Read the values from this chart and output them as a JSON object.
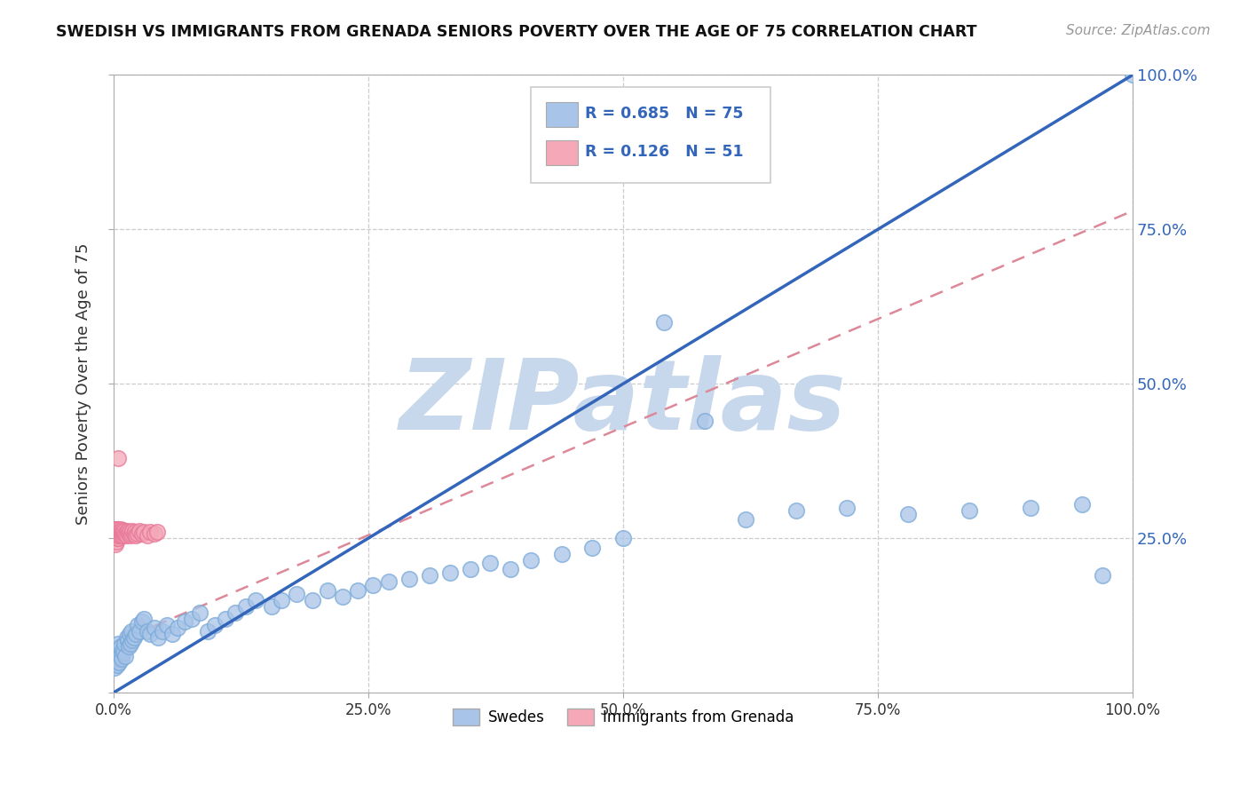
{
  "title": "SWEDISH VS IMMIGRANTS FROM GRENADA SENIORS POVERTY OVER THE AGE OF 75 CORRELATION CHART",
  "source": "Source: ZipAtlas.com",
  "ylabel": "Seniors Poverty Over the Age of 75",
  "xlim": [
    0,
    1.0
  ],
  "ylim": [
    0,
    1.0
  ],
  "xtick_vals": [
    0.0,
    0.25,
    0.5,
    0.75,
    1.0
  ],
  "ytick_vals": [
    0.0,
    0.25,
    0.5,
    0.75,
    1.0
  ],
  "ytick_labels_right": [
    "",
    "25.0%",
    "50.0%",
    "75.0%",
    "100.0%"
  ],
  "swedes_r": 0.685,
  "swedes_n": 75,
  "grenada_r": 0.126,
  "grenada_n": 51,
  "swedes_color": "#A8C4E8",
  "swedes_edge_color": "#7AAAD8",
  "grenada_color": "#F4A8B8",
  "grenada_edge_color": "#E87898",
  "swedes_line_color": "#3366BB",
  "grenada_line_color": "#DD8899",
  "watermark": "ZIPatlas",
  "watermark_color": "#C8D8EC",
  "legend_swedes": "Swedes",
  "legend_grenada": "Immigrants from Grenada",
  "swedes_line_x0": 0.0,
  "swedes_line_y0": 0.0,
  "swedes_line_x1": 1.0,
  "swedes_line_y1": 1.0,
  "grenada_line_x0": 0.0,
  "grenada_line_y0": 0.08,
  "grenada_line_x1": 1.0,
  "grenada_line_y1": 0.78,
  "swedes_x": [
    0.001,
    0.002,
    0.003,
    0.003,
    0.004,
    0.005,
    0.005,
    0.006,
    0.007,
    0.007,
    0.008,
    0.009,
    0.01,
    0.011,
    0.012,
    0.013,
    0.014,
    0.015,
    0.016,
    0.017,
    0.018,
    0.019,
    0.02,
    0.022,
    0.024,
    0.026,
    0.028,
    0.03,
    0.033,
    0.036,
    0.04,
    0.044,
    0.048,
    0.053,
    0.058,
    0.063,
    0.07,
    0.077,
    0.085,
    0.093,
    0.1,
    0.11,
    0.12,
    0.13,
    0.14,
    0.155,
    0.165,
    0.18,
    0.195,
    0.21,
    0.225,
    0.24,
    0.255,
    0.27,
    0.29,
    0.31,
    0.33,
    0.35,
    0.37,
    0.39,
    0.41,
    0.44,
    0.47,
    0.5,
    0.54,
    0.58,
    0.62,
    0.67,
    0.72,
    0.78,
    0.84,
    0.9,
    0.95,
    0.97,
    1.0
  ],
  "swedes_y": [
    0.04,
    0.06,
    0.05,
    0.07,
    0.045,
    0.055,
    0.08,
    0.05,
    0.06,
    0.075,
    0.055,
    0.07,
    0.065,
    0.08,
    0.06,
    0.09,
    0.085,
    0.075,
    0.095,
    0.08,
    0.1,
    0.085,
    0.09,
    0.095,
    0.11,
    0.1,
    0.115,
    0.12,
    0.1,
    0.095,
    0.105,
    0.09,
    0.1,
    0.11,
    0.095,
    0.105,
    0.115,
    0.12,
    0.13,
    0.1,
    0.11,
    0.12,
    0.13,
    0.14,
    0.15,
    0.14,
    0.15,
    0.16,
    0.15,
    0.165,
    0.155,
    0.165,
    0.175,
    0.18,
    0.185,
    0.19,
    0.195,
    0.2,
    0.21,
    0.2,
    0.215,
    0.225,
    0.235,
    0.25,
    0.6,
    0.44,
    0.28,
    0.295,
    0.3,
    0.29,
    0.295,
    0.3,
    0.305,
    0.19,
    1.0
  ],
  "grenada_x": [
    0.001,
    0.001,
    0.002,
    0.002,
    0.002,
    0.003,
    0.003,
    0.003,
    0.003,
    0.004,
    0.004,
    0.004,
    0.004,
    0.005,
    0.005,
    0.005,
    0.005,
    0.006,
    0.006,
    0.007,
    0.007,
    0.007,
    0.008,
    0.008,
    0.009,
    0.009,
    0.01,
    0.01,
    0.011,
    0.011,
    0.012,
    0.013,
    0.013,
    0.014,
    0.015,
    0.016,
    0.017,
    0.018,
    0.019,
    0.02,
    0.021,
    0.022,
    0.024,
    0.026,
    0.028,
    0.03,
    0.033,
    0.036,
    0.04,
    0.043,
    0.005
  ],
  "grenada_y": [
    0.25,
    0.26,
    0.24,
    0.255,
    0.265,
    0.245,
    0.255,
    0.265,
    0.26,
    0.25,
    0.255,
    0.26,
    0.265,
    0.25,
    0.255,
    0.26,
    0.265,
    0.255,
    0.26,
    0.255,
    0.26,
    0.265,
    0.255,
    0.262,
    0.258,
    0.263,
    0.255,
    0.26,
    0.258,
    0.262,
    0.258,
    0.26,
    0.255,
    0.262,
    0.258,
    0.26,
    0.255,
    0.258,
    0.262,
    0.258,
    0.26,
    0.255,
    0.258,
    0.262,
    0.258,
    0.26,
    0.255,
    0.26,
    0.258,
    0.26,
    0.38
  ]
}
